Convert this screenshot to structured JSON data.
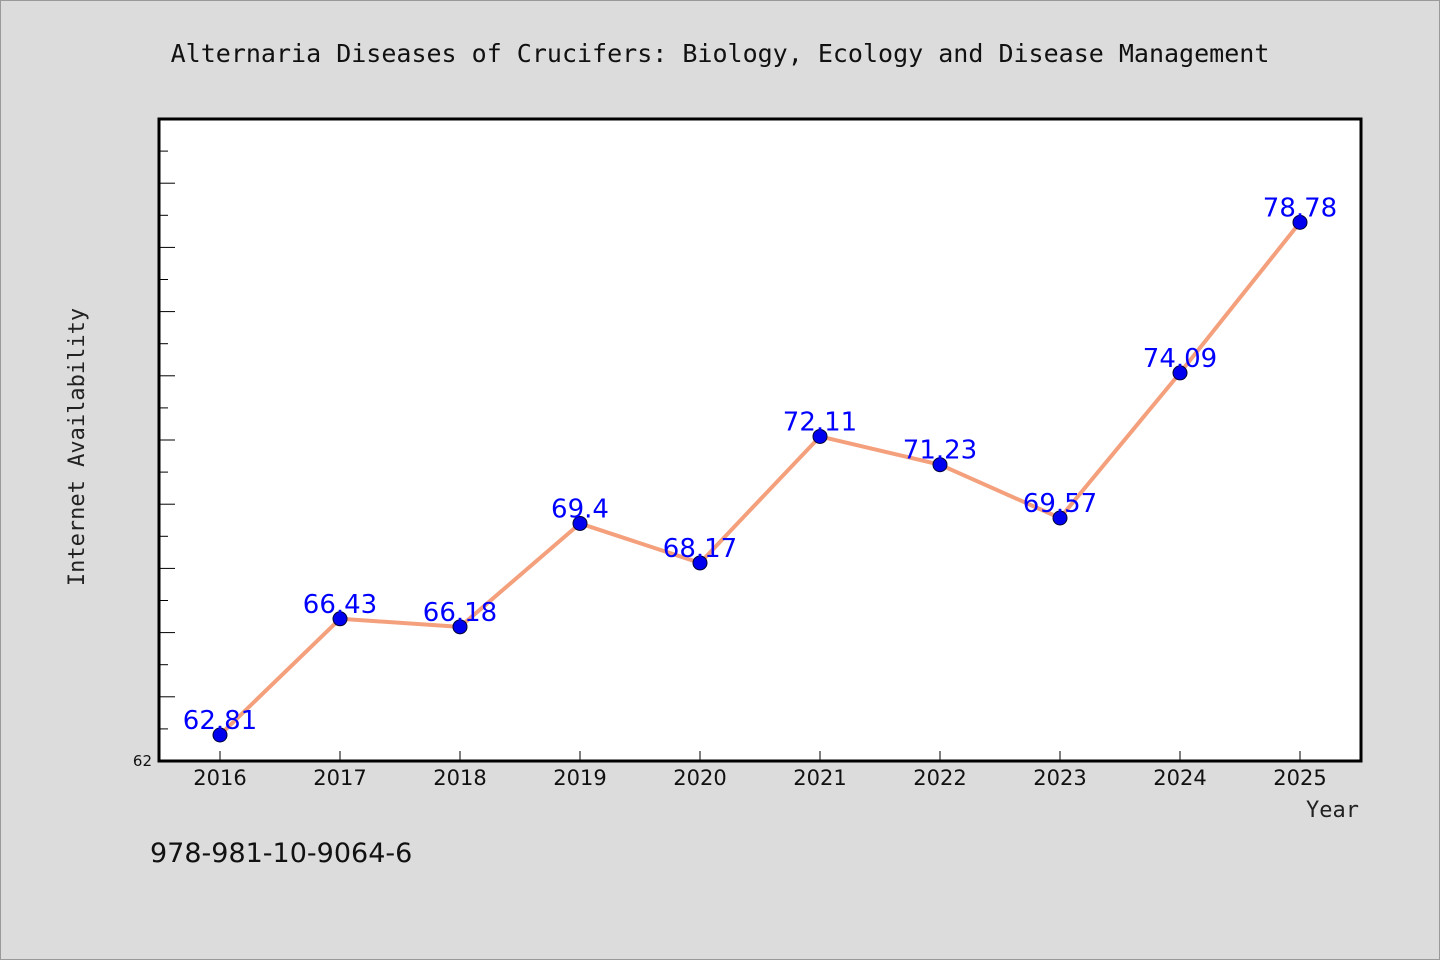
{
  "chart_data": {
    "type": "line",
    "title": "Alternaria Diseases of Crucifers: Biology, Ecology and Disease Management",
    "xlabel": "Year",
    "ylabel": "Internet Availability",
    "categories": [
      "2016",
      "2017",
      "2018",
      "2019",
      "2020",
      "2021",
      "2022",
      "2023",
      "2024",
      "2025"
    ],
    "series": [
      {
        "values": [
          62.81,
          66.43,
          66.18,
          69.4,
          68.17,
          72.11,
          71.23,
          69.57,
          74.09,
          78.78
        ]
      }
    ],
    "data_labels": [
      "62.81",
      "66.43",
      "66.18",
      "69.4",
      "68.17",
      "72.11",
      "71.23",
      "69.57",
      "74.09",
      "78.78"
    ],
    "ylim": [
      62,
      82
    ],
    "yticks_labeled": [
      "62"
    ],
    "y_minor_tick_step": 1,
    "grid": false,
    "legend": "none",
    "line_color": "#f4a07c",
    "marker_color": "#0000ee",
    "label_color": "#0000ff",
    "plot_background": "#ffffff",
    "page_background": "#dcdcdc"
  },
  "footer": {
    "isbn": "978-981-10-9064-6"
  }
}
